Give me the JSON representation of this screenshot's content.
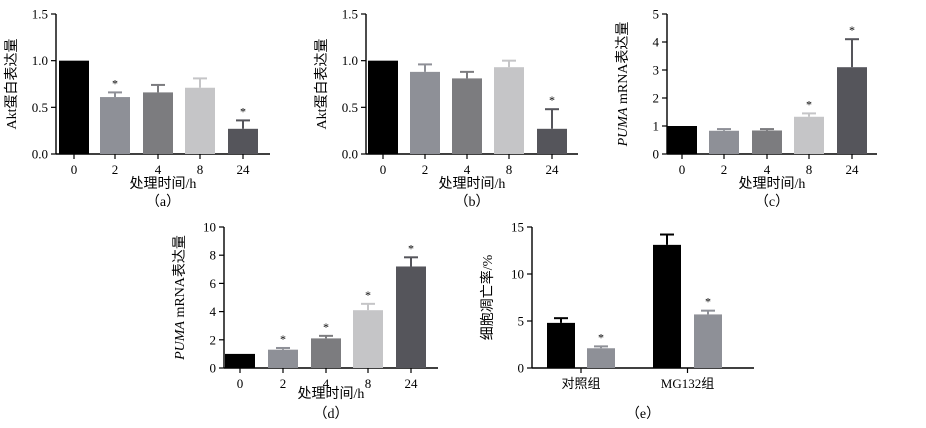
{
  "colors": {
    "c0": "#000000",
    "c1": "#8e9097",
    "c2": "#7c7c7f",
    "c3": "#c5c5c7",
    "c4": "#55555b",
    "ctrl": "#000000",
    "treat": "#8e9097"
  },
  "chart_data": [
    {
      "id": "a",
      "type": "bar",
      "panel_label": "（a）",
      "categories": [
        "0",
        "2",
        "4",
        "8",
        "24"
      ],
      "values": [
        1.0,
        0.61,
        0.66,
        0.71,
        0.27
      ],
      "errors": [
        0,
        0.05,
        0.08,
        0.1,
        0.09
      ],
      "significant": [
        false,
        true,
        false,
        false,
        true
      ],
      "significance_mark": "*",
      "xlabel": "处理时间/h",
      "ylabel": "Akt蛋白表达量",
      "ylim": [
        0,
        1.5
      ],
      "yticks": [
        "0.0",
        "0.5",
        "1.0",
        "1.5"
      ],
      "bar_colors": [
        "c0",
        "c1",
        "c2",
        "c3",
        "c4"
      ]
    },
    {
      "id": "b",
      "type": "bar",
      "panel_label": "（b）",
      "categories": [
        "0",
        "2",
        "4",
        "8",
        "24"
      ],
      "values": [
        1.0,
        0.88,
        0.81,
        0.93,
        0.27
      ],
      "errors": [
        0,
        0.08,
        0.07,
        0.07,
        0.21
      ],
      "significant": [
        false,
        false,
        false,
        false,
        true
      ],
      "significance_mark": "*",
      "xlabel": "处理时间/h",
      "ylabel": "Akt蛋白表达量",
      "ylim": [
        0,
        1.5
      ],
      "yticks": [
        "0.0",
        "0.5",
        "1.0",
        "1.5"
      ],
      "bar_colors": [
        "c0",
        "c1",
        "c2",
        "c3",
        "c4"
      ]
    },
    {
      "id": "c",
      "type": "bar",
      "panel_label": "（c）",
      "categories": [
        "0",
        "2",
        "4",
        "8",
        "24"
      ],
      "values": [
        1.0,
        0.83,
        0.84,
        1.33,
        3.1
      ],
      "errors": [
        0,
        0.06,
        0.05,
        0.12,
        1.0
      ],
      "significant": [
        false,
        false,
        false,
        true,
        true
      ],
      "significance_mark": "*",
      "xlabel": "处理时间/h",
      "ylabel_italic": "PUMA",
      "ylabel": " mRNA表达量",
      "ylim": [
        0,
        5
      ],
      "yticks": [
        "0",
        "1",
        "2",
        "3",
        "4",
        "5"
      ],
      "bar_colors": [
        "c0",
        "c1",
        "c2",
        "c3",
        "c4"
      ]
    },
    {
      "id": "d",
      "type": "bar",
      "panel_label": "（d）",
      "categories": [
        "0",
        "2",
        "4",
        "8",
        "24"
      ],
      "values": [
        1.0,
        1.3,
        2.1,
        4.1,
        7.2
      ],
      "errors": [
        0,
        0.12,
        0.18,
        0.45,
        0.65
      ],
      "significant": [
        false,
        true,
        true,
        true,
        true
      ],
      "significance_mark": "*",
      "xlabel": "处理时间/h",
      "ylabel_italic": "PUMA",
      "ylabel": " mRNA表达量",
      "ylim": [
        0,
        10
      ],
      "yticks": [
        "0",
        "2",
        "4",
        "6",
        "8",
        "10"
      ],
      "bar_colors": [
        "c0",
        "c1",
        "c2",
        "c3",
        "c4"
      ]
    },
    {
      "id": "e",
      "type": "bar",
      "panel_label": "（e）",
      "categories": [
        "对照组",
        "MG132组"
      ],
      "series": [
        {
          "values": [
            4.8,
            13.1
          ],
          "errors": [
            0.5,
            1.1
          ],
          "color": "ctrl",
          "significant": [
            false,
            false
          ]
        },
        {
          "values": [
            2.1,
            5.7
          ],
          "errors": [
            0.2,
            0.4
          ],
          "color": "treat",
          "significant": [
            true,
            true
          ]
        }
      ],
      "significance_mark": "*",
      "xlabel": "",
      "ylabel": "细胞凋亡率/%",
      "ylim": [
        0,
        15
      ],
      "yticks": [
        "0",
        "5",
        "10",
        "15"
      ]
    }
  ]
}
